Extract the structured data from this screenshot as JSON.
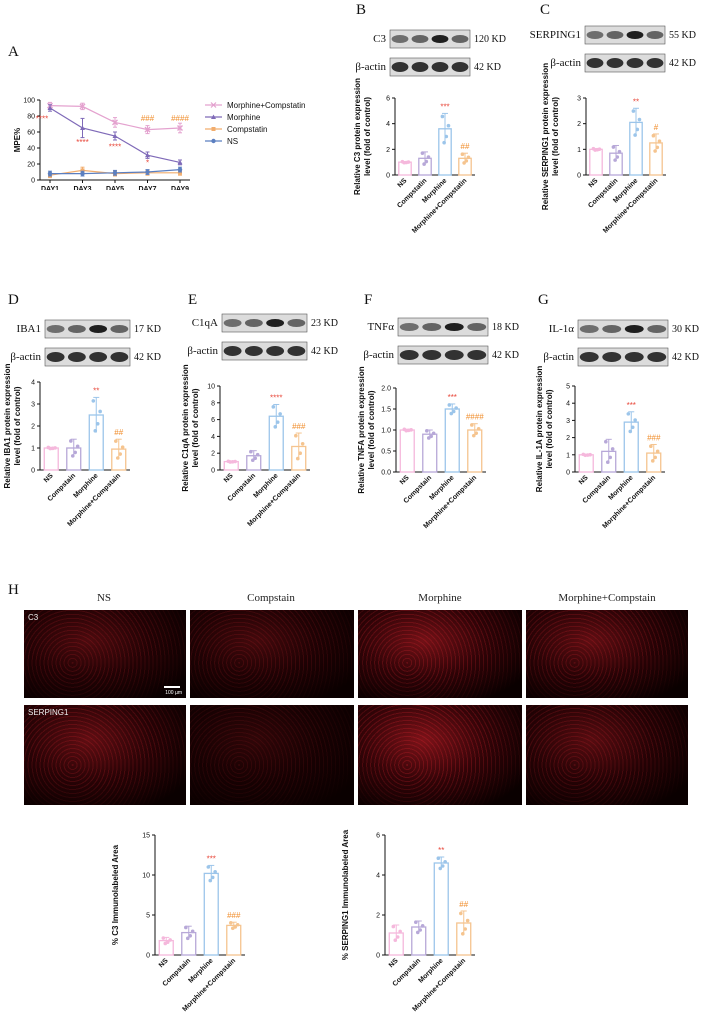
{
  "panels": {
    "A": "A",
    "B": "B",
    "C": "C",
    "D": "D",
    "E": "E",
    "F": "F",
    "G": "G",
    "H": "H"
  },
  "colors": {
    "ns": "#f5b8dc",
    "compstatin": "#b7a8d8",
    "morphine": "#9cc5ea",
    "morph_comp": "#f5c48f",
    "line_mc": "#e4a2cf",
    "line_m": "#7f6ab8",
    "line_c": "#f2ad6d",
    "line_ns": "#5b7fc0",
    "sig_star": "#e8473a",
    "sig_hash": "#f08c2a"
  },
  "bar_units": {
    "pos_ylabel": "Relative protein expression level (fold of control)"
  },
  "chart_data": [
    {
      "id": "A",
      "type": "line",
      "ylabel": "MPE%",
      "x": [
        "DAY1",
        "DAY3",
        "DAY5",
        "DAY7",
        "DAY9"
      ],
      "ylim": [
        0,
        100
      ],
      "yticks": [
        0,
        20,
        40,
        60,
        80,
        100
      ],
      "series": [
        {
          "name": "Morphine+Compstatin",
          "values": [
            93,
            92,
            72,
            63,
            65
          ],
          "err": [
            4,
            4,
            6,
            5,
            6
          ]
        },
        {
          "name": "Morphine",
          "values": [
            90,
            65,
            55,
            31,
            22
          ],
          "err": [
            4,
            12,
            5,
            4,
            3
          ]
        },
        {
          "name": "Compstatin",
          "values": [
            6,
            12,
            8,
            9,
            9
          ],
          "err": [
            3,
            4,
            3,
            3,
            3
          ]
        },
        {
          "name": "NS",
          "values": [
            8,
            8,
            9,
            10,
            13
          ],
          "err": [
            3,
            3,
            3,
            3,
            3
          ]
        }
      ],
      "annotations": [
        {
          "x": "DAY1",
          "y": 73,
          "text": "****",
          "color": "star"
        },
        {
          "x": "DAY3",
          "y": 44,
          "text": "****",
          "color": "star"
        },
        {
          "x": "DAY5",
          "y": 38,
          "text": "****",
          "color": "star"
        },
        {
          "x": "DAY7",
          "y": 18,
          "text": "*",
          "color": "star"
        },
        {
          "x": "DAY7",
          "y": 74,
          "text": "###",
          "color": "hash"
        },
        {
          "x": "DAY9",
          "y": 74,
          "text": "####",
          "color": "hash"
        }
      ]
    },
    {
      "id": "B",
      "type": "bar",
      "blot": {
        "target": "C3",
        "target_kd": "120 KD",
        "actin": "β-actin",
        "actin_kd": "42 KD"
      },
      "ylabel": [
        "Relative C3 protein expression",
        "level (fold of control)"
      ],
      "categories": [
        "NS",
        "Compstatin",
        "Morphine",
        "Morphine+Compstatin"
      ],
      "values": [
        1.0,
        1.3,
        3.6,
        1.3
      ],
      "err": [
        0.05,
        0.5,
        1.2,
        0.4
      ],
      "ylim": [
        0,
        6
      ],
      "yticks": [
        0,
        2,
        4,
        6
      ],
      "sig": [
        null,
        null,
        "***",
        "##"
      ]
    },
    {
      "id": "C",
      "type": "bar",
      "blot": {
        "target": "SERPING1",
        "target_kd": "55 KD",
        "actin": "β-actin",
        "actin_kd": "42 KD"
      },
      "ylabel": [
        "Relative SERPING1 protein expression",
        "level (fold of control)"
      ],
      "categories": [
        "NS",
        "Compstatin",
        "Morphine",
        "Morphine+Compstatin"
      ],
      "values": [
        1.0,
        0.85,
        2.05,
        1.25
      ],
      "err": [
        0.03,
        0.3,
        0.55,
        0.35
      ],
      "ylim": [
        0,
        3
      ],
      "yticks": [
        0,
        1,
        2,
        3
      ],
      "sig": [
        null,
        null,
        "**",
        "#"
      ]
    },
    {
      "id": "D",
      "type": "bar",
      "blot": {
        "target": "IBA1",
        "target_kd": "17 KD",
        "actin": "β-actin",
        "actin_kd": "42 KD"
      },
      "ylabel": [
        "Relative IBA1 protein expression",
        "level (fold of control)"
      ],
      "categories": [
        "NS",
        "Compstain",
        "Morphine",
        "Morphine+Compstain"
      ],
      "values": [
        1.0,
        1.0,
        2.5,
        0.95
      ],
      "err": [
        0.03,
        0.4,
        0.8,
        0.45
      ],
      "ylim": [
        0,
        4
      ],
      "yticks": [
        0,
        1,
        2,
        3,
        4
      ],
      "sig": [
        null,
        null,
        "**",
        "##"
      ]
    },
    {
      "id": "E",
      "type": "bar",
      "blot": {
        "target": "C1qA",
        "target_kd": "23 KD",
        "actin": "β-actin",
        "actin_kd": "42 KD"
      },
      "ylabel": [
        "Relative C1qA protein expression",
        "level (fold of control)"
      ],
      "categories": [
        "NS",
        "Compstain",
        "Morphine",
        "Morphine+Compstain"
      ],
      "values": [
        1.0,
        1.7,
        6.4,
        2.8
      ],
      "err": [
        0.05,
        0.6,
        1.4,
        1.6
      ],
      "ylim": [
        0,
        10
      ],
      "yticks": [
        0,
        2,
        4,
        6,
        8,
        10
      ],
      "sig": [
        null,
        null,
        "****",
        "###"
      ]
    },
    {
      "id": "F",
      "type": "bar",
      "blot": {
        "target": "TNFα",
        "target_kd": "18 KD",
        "actin": "β-actin",
        "actin_kd": "42 KD"
      },
      "ylabel": [
        "Relative TNFA protein expression",
        "level (fold of control)"
      ],
      "categories": [
        "NS",
        "Compstain",
        "Morphine",
        "Morphine+Compstain"
      ],
      "values": [
        1.0,
        0.9,
        1.5,
        1.0
      ],
      "err": [
        0.02,
        0.1,
        0.12,
        0.15
      ],
      "ylim": [
        0,
        2
      ],
      "yticks": [
        0.0,
        0.5,
        1.0,
        1.5,
        2.0
      ],
      "sig": [
        null,
        null,
        "***",
        "####"
      ]
    },
    {
      "id": "G",
      "type": "bar",
      "blot": {
        "target": "IL-1α",
        "target_kd": "30 KD",
        "actin": "β-actin",
        "actin_kd": "42 KD"
      },
      "ylabel": [
        "Relative IL-1A protein expression",
        "level (fold of control)"
      ],
      "categories": [
        "NS",
        "Compstain",
        "Morphine",
        "Morphine+Compstain"
      ],
      "values": [
        1.0,
        1.2,
        2.9,
        1.1
      ],
      "err": [
        0.03,
        0.7,
        0.6,
        0.5
      ],
      "ylim": [
        0,
        5
      ],
      "yticks": [
        0,
        1,
        2,
        3,
        4,
        5
      ],
      "sig": [
        null,
        null,
        "***",
        "###"
      ]
    },
    {
      "id": "H1",
      "type": "bar",
      "ylabel": [
        "% C3 Immunolabeled Area"
      ],
      "categories": [
        "NS",
        "Compstain",
        "Morphine",
        "Morphine+Compstain"
      ],
      "values": [
        1.8,
        2.8,
        10.2,
        3.7
      ],
      "err": [
        0.4,
        0.8,
        1.0,
        0.4
      ],
      "ylim": [
        0,
        15
      ],
      "yticks": [
        0,
        5,
        10,
        15
      ],
      "sig": [
        null,
        null,
        "***",
        "###"
      ]
    },
    {
      "id": "H2",
      "type": "bar",
      "ylabel": [
        "% SERPING1 Immunolabeled Area"
      ],
      "categories": [
        "NS",
        "Compstain",
        "Morphine",
        "Morphine+Compstain"
      ],
      "values": [
        1.1,
        1.4,
        4.6,
        1.6
      ],
      "err": [
        0.4,
        0.3,
        0.3,
        0.6
      ],
      "ylim": [
        0,
        6
      ],
      "yticks": [
        0,
        2,
        4,
        6
      ],
      "sig": [
        null,
        null,
        "**",
        "##"
      ]
    }
  ],
  "if_panel": {
    "columns": [
      "NS",
      "Compstain",
      "Morphine",
      "Morphine+Compstain"
    ],
    "rows": [
      "C3",
      "SERPING1"
    ],
    "scale_bar": "100 µm"
  }
}
